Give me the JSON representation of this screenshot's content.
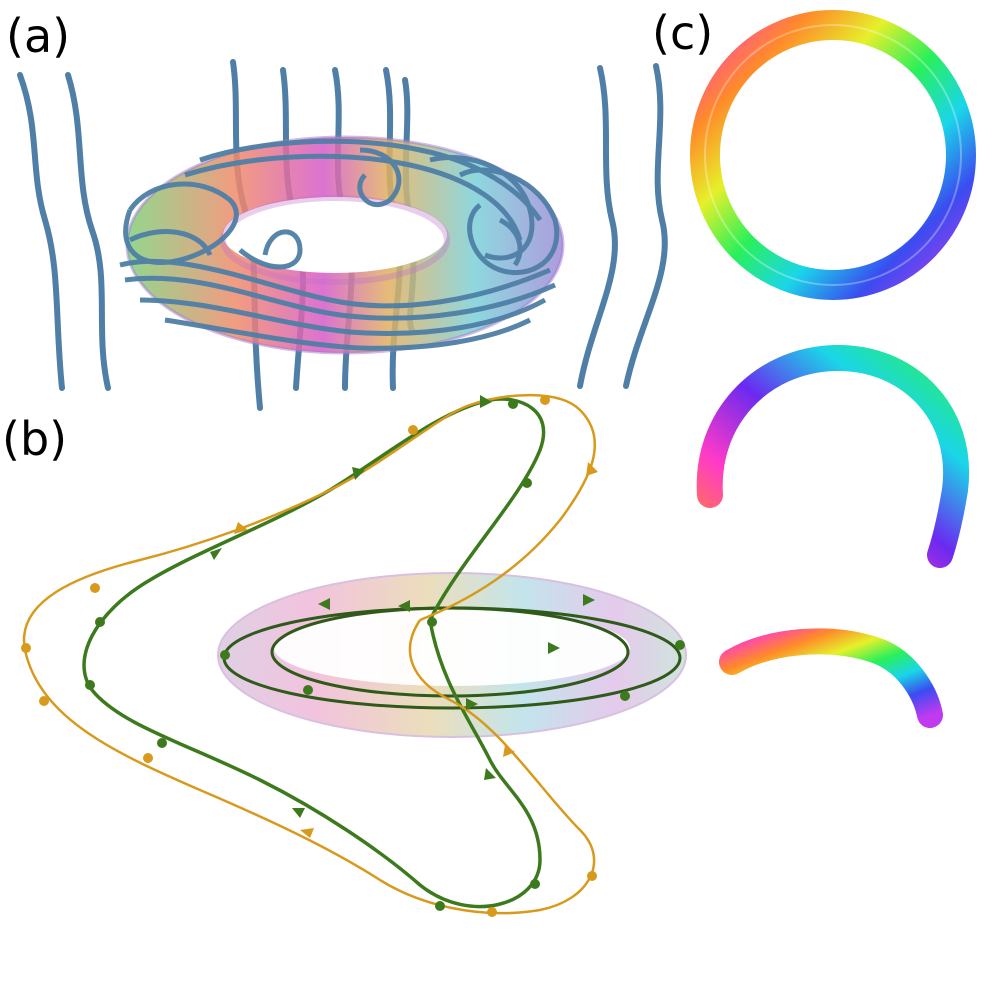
{
  "panels": {
    "a": {
      "label": "(a)"
    },
    "b": {
      "label": "(b)"
    },
    "c": {
      "label": "(c)"
    }
  },
  "colors": {
    "field_tube": "#4f7fa6",
    "green_curve": "#3d7a1e",
    "orange_curve": "#d89a1c",
    "background": "#ffffff"
  },
  "icons": [
    "torus-knot",
    "field-lines",
    "ring-torus",
    "arc-segment"
  ]
}
